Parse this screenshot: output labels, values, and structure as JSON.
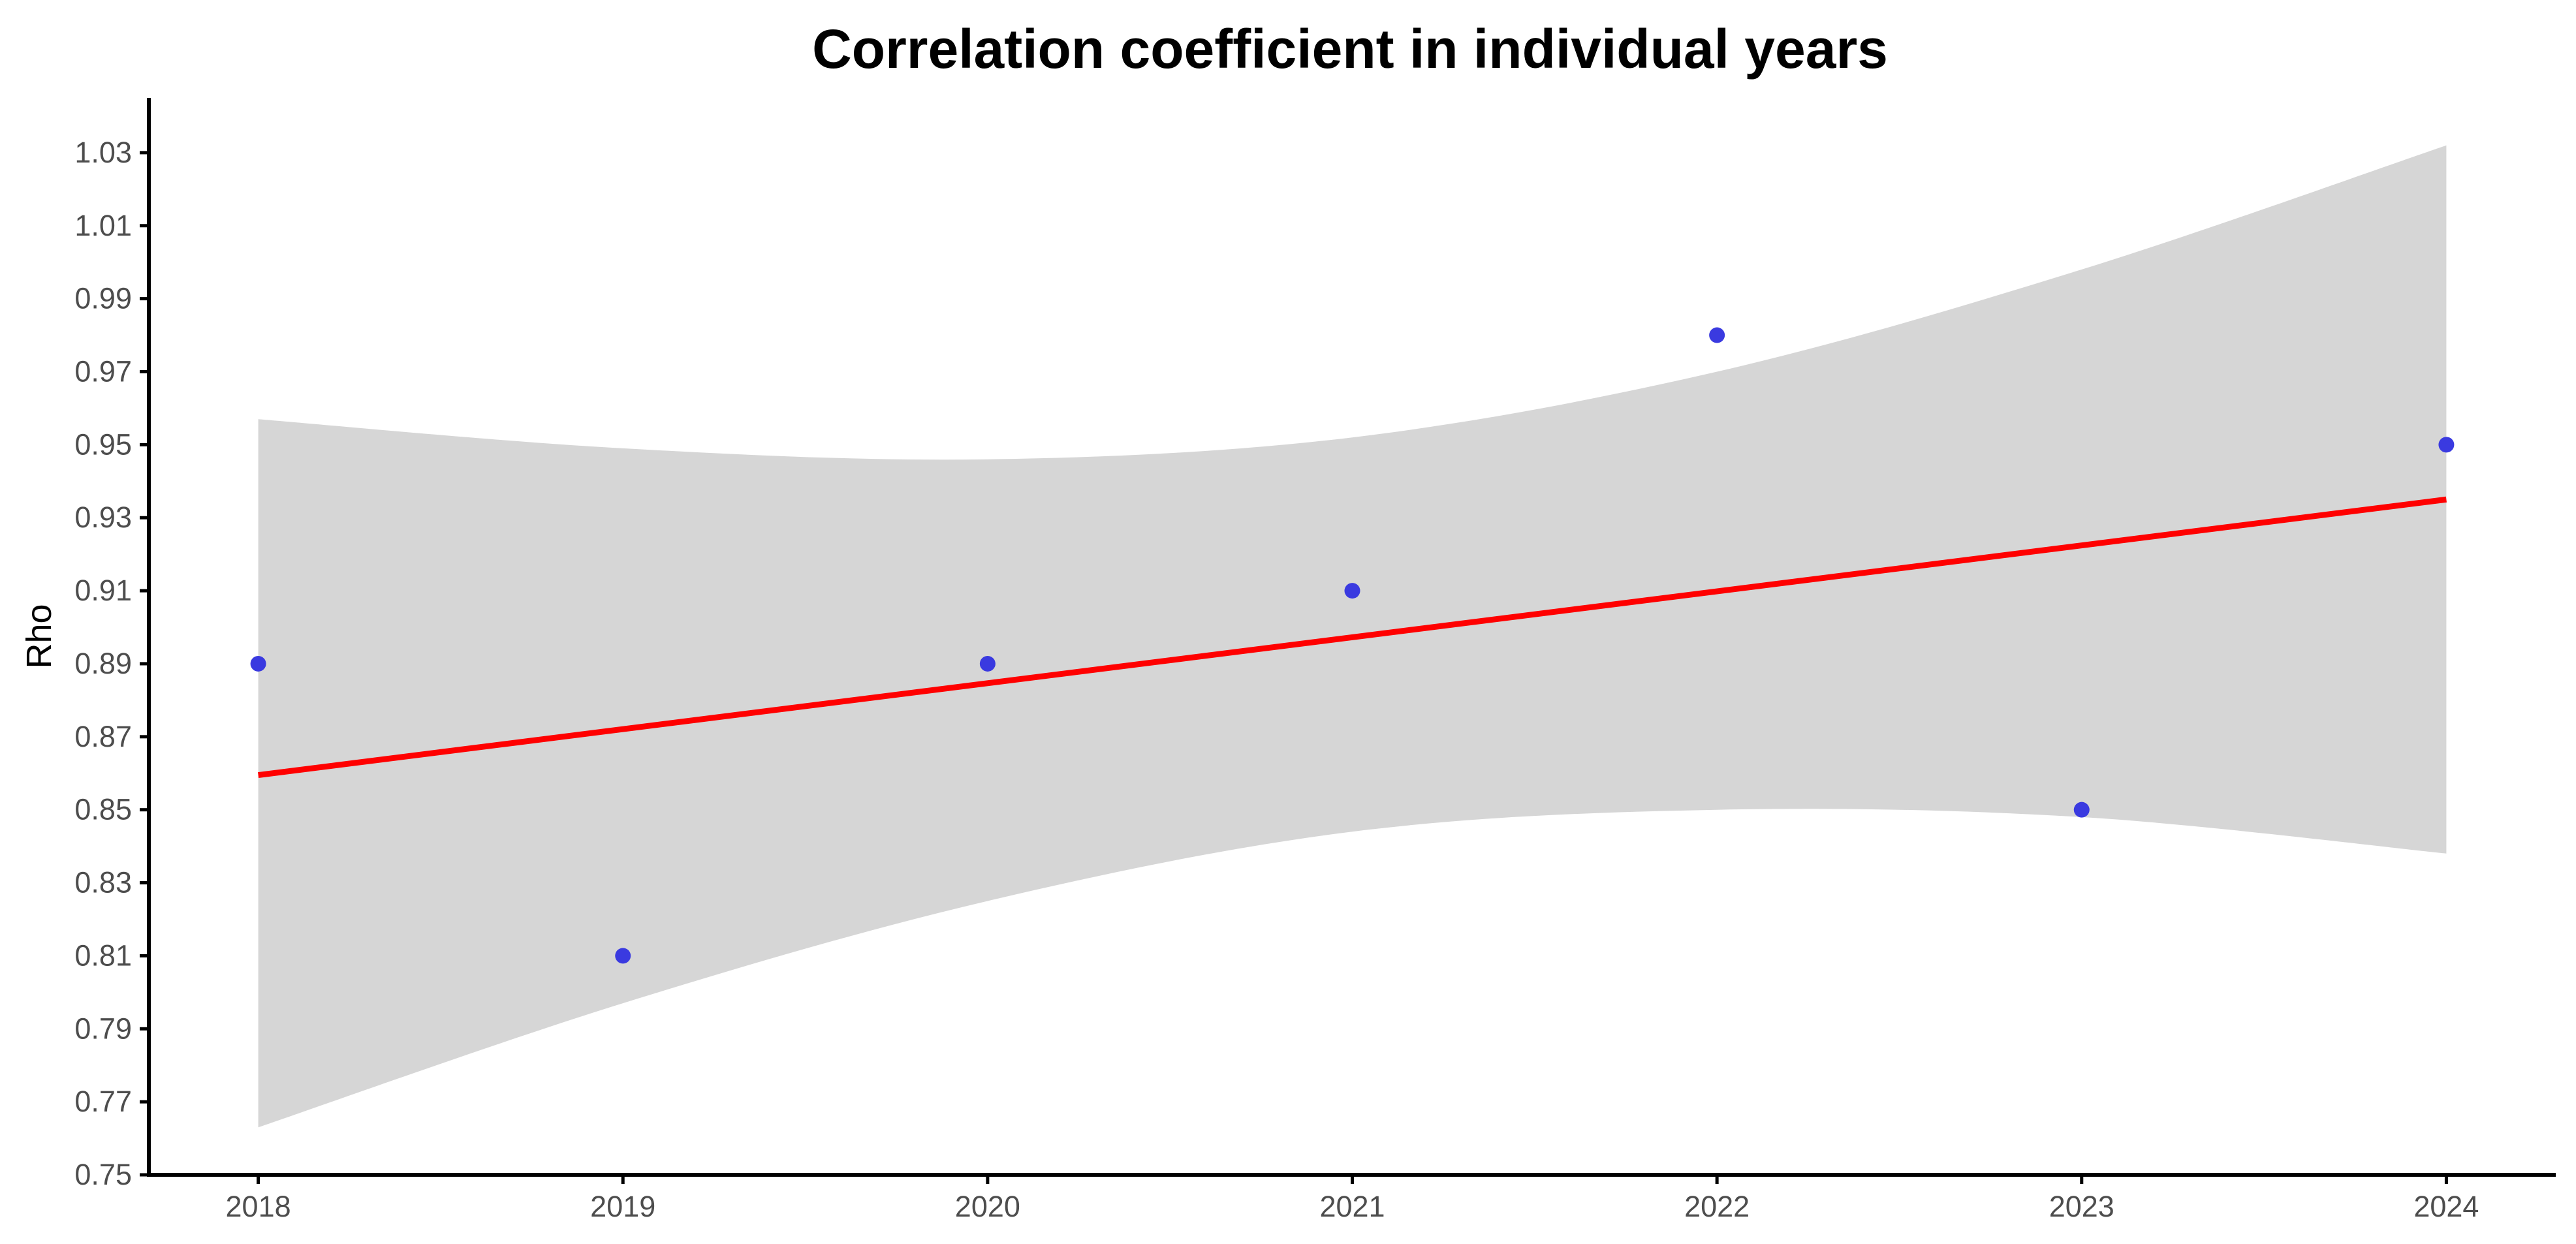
{
  "chart_data": {
    "type": "scatter",
    "title": "Correlation coefficient in individual years",
    "xlabel": "",
    "ylabel": "Rho",
    "x": [
      2018,
      2019,
      2020,
      2021,
      2022,
      2023,
      2024
    ],
    "xticks": [
      "2018",
      "2019",
      "2020",
      "2021",
      "2022",
      "2023",
      "2024"
    ],
    "yticks": [
      "0.75",
      "0.77",
      "0.79",
      "0.81",
      "0.83",
      "0.85",
      "0.87",
      "0.89",
      "0.91",
      "0.93",
      "0.95",
      "0.97",
      "0.99",
      "1.01",
      "1.03"
    ],
    "xlim": [
      2017.7,
      2024.3
    ],
    "ylim": [
      0.75,
      1.045
    ],
    "grid": false,
    "series": [
      {
        "name": "Rho",
        "kind": "points",
        "x": [
          2018,
          2019,
          2020,
          2021,
          2022,
          2023,
          2024
        ],
        "y": [
          0.89,
          0.81,
          0.89,
          0.91,
          0.98,
          0.85,
          0.95
        ],
        "color": "#3a3ae0"
      },
      {
        "name": "linear fit",
        "kind": "line",
        "x": [
          2018,
          2024
        ],
        "y": [
          0.8595,
          0.935
        ],
        "color": "#ff0000"
      },
      {
        "name": "95% confidence band",
        "kind": "band",
        "x": [
          2018,
          2019,
          2020,
          2021,
          2022,
          2023,
          2024
        ],
        "lower": [
          0.763,
          0.797,
          0.825,
          0.844,
          0.85,
          0.848,
          0.838
        ],
        "upper": [
          0.957,
          0.949,
          0.946,
          0.952,
          0.97,
          0.998,
          1.032
        ],
        "color": "#d6d6d6"
      }
    ]
  }
}
